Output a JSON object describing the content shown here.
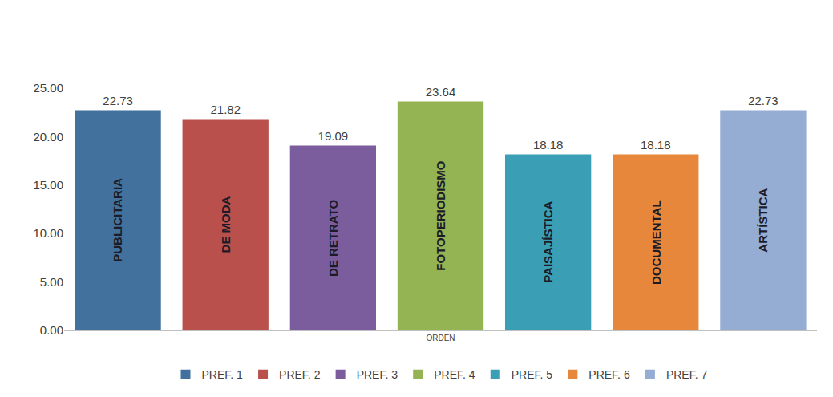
{
  "chart_data": {
    "type": "bar",
    "categories": [
      "ORDEN"
    ],
    "series": [
      {
        "name": "PREF. 1",
        "text": "PUBLICITARIA",
        "color": "#41719c",
        "values": [
          22.73
        ]
      },
      {
        "name": "PREF. 2",
        "text": "DE MODA",
        "color": "#b9504c",
        "values": [
          21.82
        ]
      },
      {
        "name": "PREF. 3",
        "text": "DE RETRATO",
        "color": "#7b5c9c",
        "values": [
          19.09
        ]
      },
      {
        "name": "PREF. 4",
        "text": "FOTOPERIODISMO",
        "color": "#94b352",
        "values": [
          23.64
        ]
      },
      {
        "name": "PREF. 5",
        "text": "PAISAJÍSTICA",
        "color": "#3a9fb5",
        "values": [
          18.18
        ]
      },
      {
        "name": "PREF. 6",
        "text": "DOCUMENTAL",
        "color": "#e7873b",
        "values": [
          18.18
        ]
      },
      {
        "name": "PREF. 7",
        "text": "ARTÍSTICA",
        "color": "#95acd3",
        "values": [
          22.73
        ]
      }
    ],
    "ylim": [
      0,
      25
    ],
    "yticks": [
      {
        "value": 0,
        "label": "0.00"
      },
      {
        "value": 5,
        "label": "5.00"
      },
      {
        "value": 10,
        "label": "10.00"
      },
      {
        "value": 15,
        "label": "15.00"
      },
      {
        "value": 20,
        "label": "20.00"
      },
      {
        "value": 25,
        "label": "25.00"
      }
    ],
    "grid": false,
    "data_labels": true,
    "legend": "bottom"
  }
}
